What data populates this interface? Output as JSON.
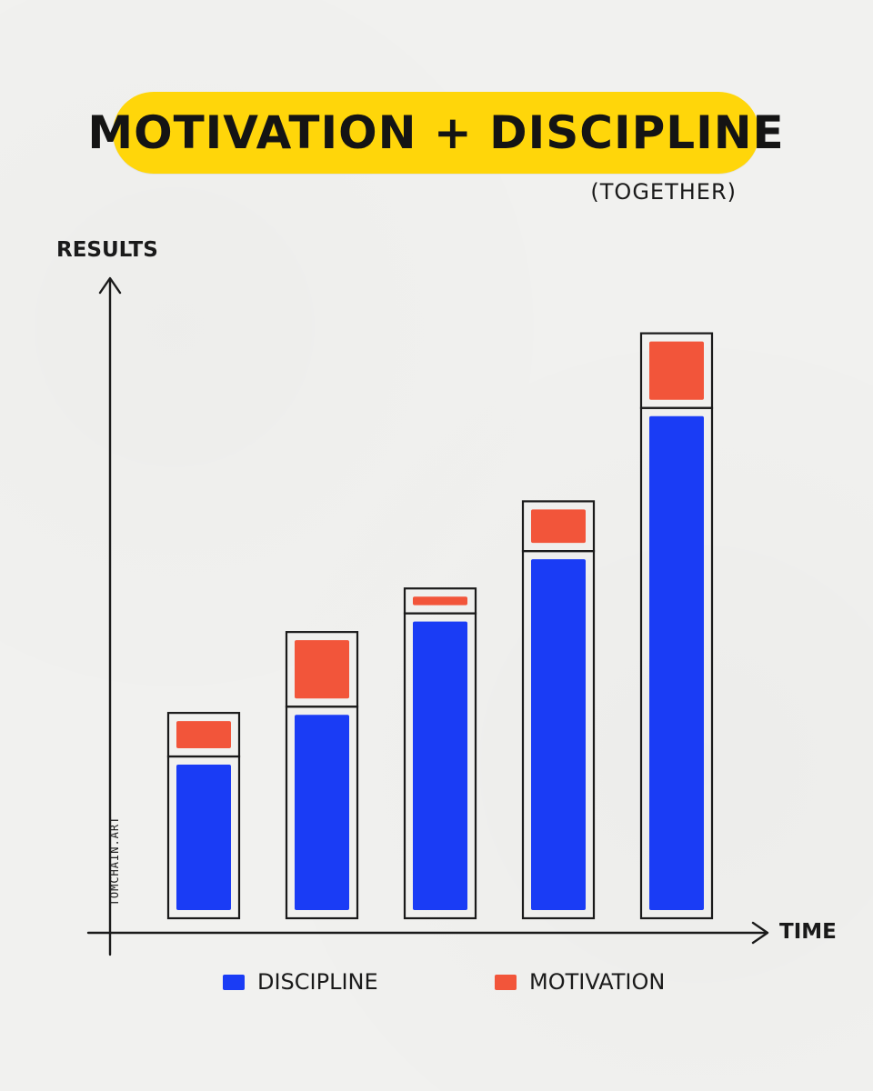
{
  "title": "MOTIVATION + DISCIPLINE",
  "subtitle": "(TOGETHER)",
  "watermark": "TOMCHAIN.ART",
  "colors": {
    "background": "#f1f1ef",
    "title_pill": "#ffd60a",
    "discipline": "#1a3cf5",
    "motivation": "#f2553a",
    "ink": "#1a1a1a"
  },
  "legend": {
    "discipline_label": "DISCIPLINE",
    "motivation_label": "MOTIVATION"
  },
  "chart_data": {
    "type": "bar",
    "stacked": true,
    "title": "MOTIVATION + DISCIPLINE",
    "subtitle": "(TOGETHER)",
    "xlabel": "TIME",
    "ylabel": "RESULTS",
    "categories": [
      "",
      "",
      "",
      "",
      ""
    ],
    "series": [
      {
        "name": "DISCIPLINE",
        "color": "#1a3cf5",
        "values": [
          26,
          34,
          49,
          59,
          82
        ]
      },
      {
        "name": "MOTIVATION",
        "color": "#f2553a",
        "values": [
          7,
          12,
          4,
          8,
          12
        ]
      }
    ],
    "ylim": [
      0,
      103
    ],
    "grid": false,
    "legend_position": "bottom"
  }
}
